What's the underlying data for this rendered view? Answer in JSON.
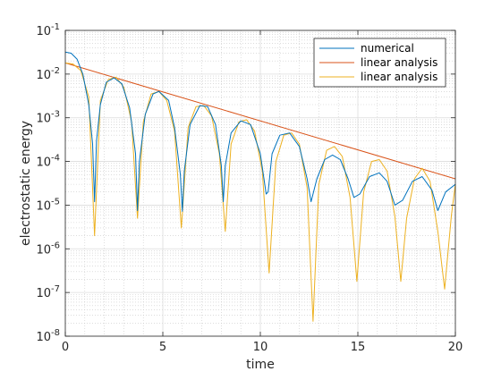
{
  "chart_data": {
    "type": "line",
    "title": "",
    "xlabel": "time",
    "ylabel": "electrostatic energy",
    "xlim": [
      0,
      20
    ],
    "ylim": [
      1e-08,
      0.1
    ],
    "yscale": "log",
    "xticks": [
      0,
      5,
      10,
      15,
      20
    ],
    "xtick_labels": [
      "0",
      "5",
      "10",
      "15",
      "20"
    ],
    "yticks": [
      {
        "value": 1e-08,
        "base": "10",
        "exp": "-8"
      },
      {
        "value": 1e-07,
        "base": "10",
        "exp": "-7"
      },
      {
        "value": 1e-06,
        "base": "10",
        "exp": "-6"
      },
      {
        "value": 1e-05,
        "base": "10",
        "exp": "-5"
      },
      {
        "value": 0.0001,
        "base": "10",
        "exp": "-4"
      },
      {
        "value": 0.001,
        "base": "10",
        "exp": "-3"
      },
      {
        "value": 0.01,
        "base": "10",
        "exp": "-2"
      },
      {
        "value": 0.1,
        "base": "10",
        "exp": "-1"
      }
    ],
    "grid": true,
    "minor_grid": true,
    "legend_position": "top-right",
    "series": [
      {
        "name": "numerical",
        "color": "#0072BD",
        "x": [
          0,
          0.3,
          0.6,
          0.9,
          1.2,
          1.4,
          1.5,
          1.6,
          1.8,
          2.1,
          2.5,
          2.9,
          3.3,
          3.6,
          3.7,
          3.8,
          4.1,
          4.5,
          4.8,
          5.3,
          5.6,
          5.9,
          6.0,
          6.1,
          6.4,
          6.9,
          7.3,
          7.7,
          8.0,
          8.1,
          8.2,
          8.5,
          9.0,
          9.5,
          10.0,
          10.3,
          10.4,
          10.6,
          11.0,
          11.5,
          12.0,
          12.4,
          12.6,
          12.9,
          13.3,
          13.7,
          14.1,
          14.5,
          14.8,
          15.1,
          15.6,
          16.1,
          16.5,
          16.9,
          17.3,
          17.8,
          18.3,
          18.8,
          19.1,
          19.5,
          20.0
        ],
        "y": [
          0.032,
          0.03,
          0.022,
          0.01,
          0.002,
          0.00025,
          1.2e-05,
          0.0003,
          0.002,
          0.0065,
          0.0082,
          0.006,
          0.0017,
          0.00015,
          7.5e-06,
          0.0001,
          0.0012,
          0.0035,
          0.004,
          0.0025,
          0.0006,
          5e-05,
          7.2e-06,
          6e-05,
          0.0007,
          0.0019,
          0.0018,
          0.0007,
          8e-05,
          1.2e-05,
          8e-05,
          0.00045,
          0.00085,
          0.0007,
          0.00015,
          1.8e-05,
          2e-05,
          0.00015,
          0.0004,
          0.00045,
          0.00022,
          4e-05,
          1.2e-05,
          4e-05,
          0.00011,
          0.00014,
          0.00011,
          4e-05,
          1.5e-05,
          1.8e-05,
          4.5e-05,
          5.5e-05,
          3.5e-05,
          1e-05,
          1.3e-05,
          3.5e-05,
          4.5e-05,
          2.2e-05,
          7.5e-06,
          2e-05,
          3e-05
        ]
      },
      {
        "name": "linear analysis",
        "color": "#D95319",
        "x": [
          0,
          20
        ],
        "y": [
          0.018,
          4e-05
        ]
      },
      {
        "name": "linear analysis",
        "color": "#EDB120",
        "x": [
          0,
          0.4,
          0.8,
          1.2,
          1.5,
          1.8,
          2.2,
          2.6,
          3.0,
          3.4,
          3.7,
          4.0,
          4.4,
          4.8,
          5.2,
          5.6,
          5.95,
          6.3,
          6.7,
          7.1,
          7.5,
          7.9,
          8.2,
          8.5,
          8.9,
          9.3,
          9.7,
          10.1,
          10.45,
          10.8,
          11.2,
          11.6,
          12.0,
          12.4,
          12.7,
          13.0,
          13.4,
          13.8,
          14.2,
          14.6,
          14.95,
          15.3,
          15.7,
          16.1,
          16.5,
          16.9,
          17.2,
          17.5,
          17.9,
          18.3,
          18.7,
          19.1,
          19.45,
          19.8,
          20.0
        ],
        "y": [
          0.018,
          0.017,
          0.012,
          0.003,
          2e-06,
          0.0025,
          0.0075,
          0.0085,
          0.005,
          0.0008,
          5e-06,
          0.0008,
          0.0035,
          0.004,
          0.0025,
          0.0005,
          3e-06,
          0.0006,
          0.0018,
          0.0019,
          0.0011,
          0.00015,
          2.5e-06,
          0.00025,
          0.0008,
          0.0009,
          0.0005,
          6e-05,
          2.8e-07,
          0.0001,
          0.0004,
          0.00045,
          0.00025,
          2.5e-05,
          2.2e-08,
          3e-05,
          0.00018,
          0.00022,
          0.00013,
          1.5e-05,
          1.8e-07,
          2e-05,
          0.0001,
          0.00011,
          6e-05,
          5.5e-06,
          1.8e-07,
          5e-06,
          4e-05,
          7e-05,
          3.5e-05,
          2.5e-06,
          1.2e-07,
          6e-06,
          3e-05
        ]
      }
    ]
  }
}
